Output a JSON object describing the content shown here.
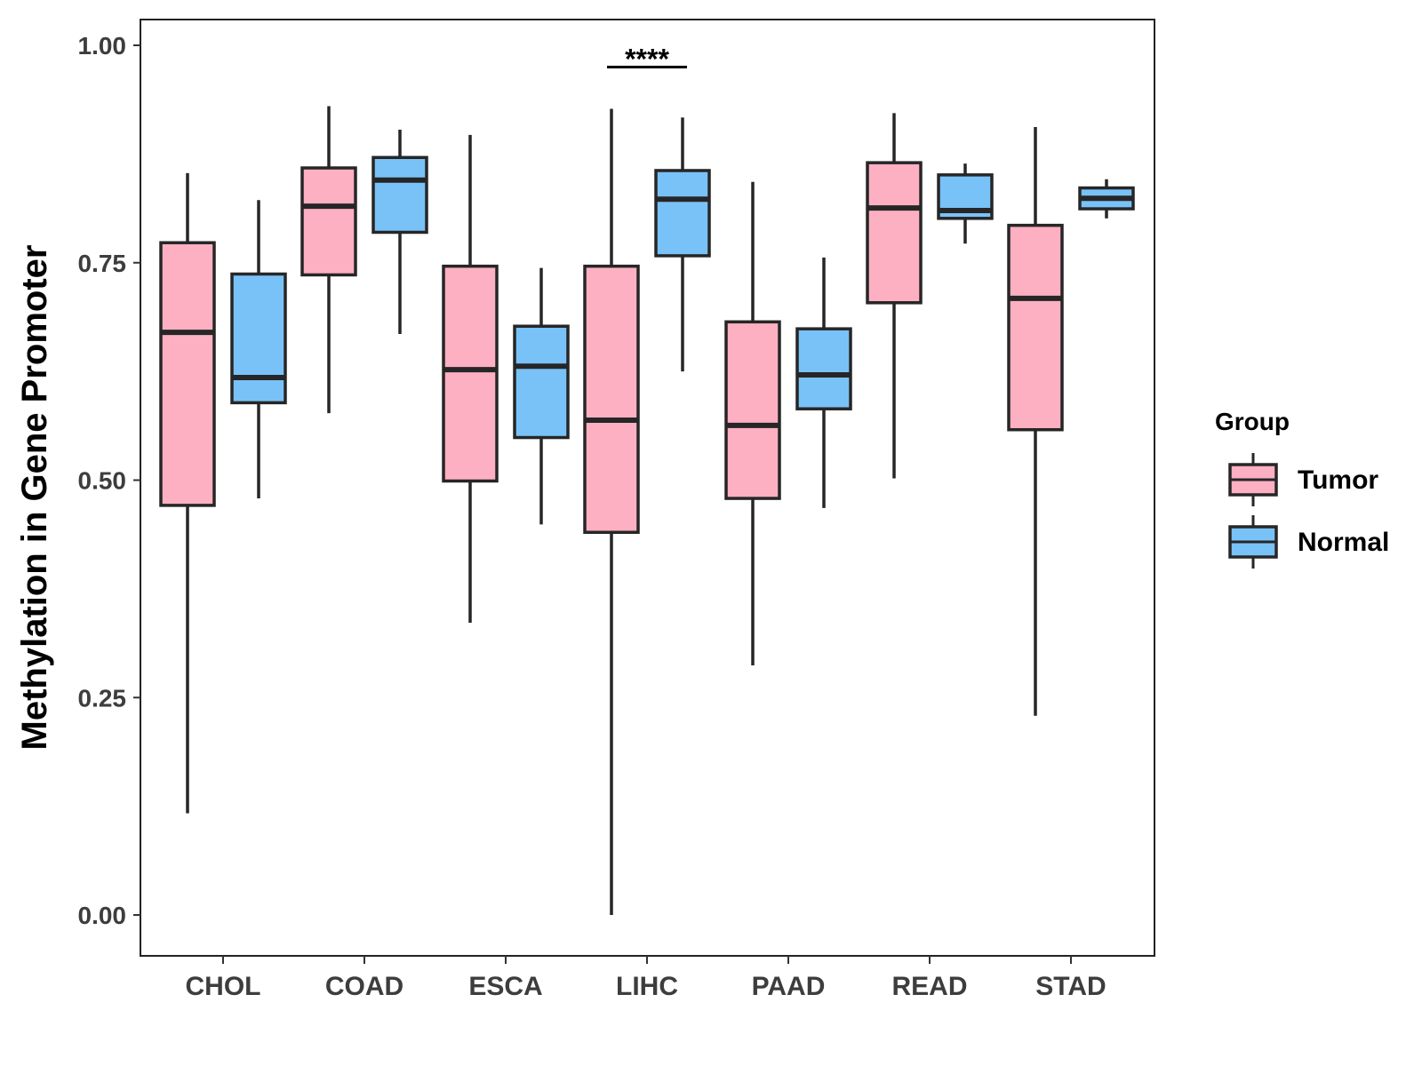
{
  "chart_data": {
    "type": "boxplot",
    "title": "",
    "xlabel": "",
    "ylabel": "Methylation in Gene Promoter",
    "ylim": [
      -0.05,
      1.03
    ],
    "yticks": [
      0.0,
      0.25,
      0.5,
      0.75,
      1.0
    ],
    "ytick_labels": [
      "0.00",
      "0.25",
      "0.50",
      "0.75",
      "1.00"
    ],
    "categories": [
      "CHOL",
      "COAD",
      "ESCA",
      "LIHC",
      "PAAD",
      "READ",
      "STAD"
    ],
    "grid": false,
    "legend": {
      "title": "Group",
      "position": "right"
    },
    "series": [
      {
        "name": "Tumor",
        "color": "#FDB0C2",
        "boxes": [
          {
            "min": 0.117,
            "q1": 0.471,
            "median": 0.67,
            "q3": 0.773,
            "max": 0.853
          },
          {
            "min": 0.577,
            "q1": 0.736,
            "median": 0.815,
            "q3": 0.859,
            "max": 0.93
          },
          {
            "min": 0.336,
            "q1": 0.499,
            "median": 0.627,
            "q3": 0.746,
            "max": 0.897
          },
          {
            "min": 0.0,
            "q1": 0.44,
            "median": 0.569,
            "q3": 0.746,
            "max": 0.927
          },
          {
            "min": 0.287,
            "q1": 0.479,
            "median": 0.563,
            "q3": 0.682,
            "max": 0.843
          },
          {
            "min": 0.502,
            "q1": 0.704,
            "median": 0.813,
            "q3": 0.865,
            "max": 0.922
          },
          {
            "min": 0.229,
            "q1": 0.558,
            "median": 0.709,
            "q3": 0.793,
            "max": 0.906
          }
        ]
      },
      {
        "name": "Normal",
        "color": "#79C2F7",
        "boxes": [
          {
            "min": 0.479,
            "q1": 0.589,
            "median": 0.618,
            "q3": 0.737,
            "max": 0.822
          },
          {
            "min": 0.668,
            "q1": 0.785,
            "median": 0.845,
            "q3": 0.871,
            "max": 0.903
          },
          {
            "min": 0.449,
            "q1": 0.549,
            "median": 0.631,
            "q3": 0.677,
            "max": 0.744
          },
          {
            "min": 0.625,
            "q1": 0.758,
            "median": 0.823,
            "q3": 0.856,
            "max": 0.917
          },
          {
            "min": 0.468,
            "q1": 0.582,
            "median": 0.621,
            "q3": 0.674,
            "max": 0.756
          },
          {
            "min": 0.772,
            "q1": 0.801,
            "median": 0.81,
            "q3": 0.851,
            "max": 0.864
          },
          {
            "min": 0.801,
            "q1": 0.812,
            "median": 0.824,
            "q3": 0.836,
            "max": 0.846
          }
        ]
      }
    ],
    "annotations": [
      {
        "category": "LIHC",
        "text": "****",
        "y": 0.975
      }
    ]
  }
}
